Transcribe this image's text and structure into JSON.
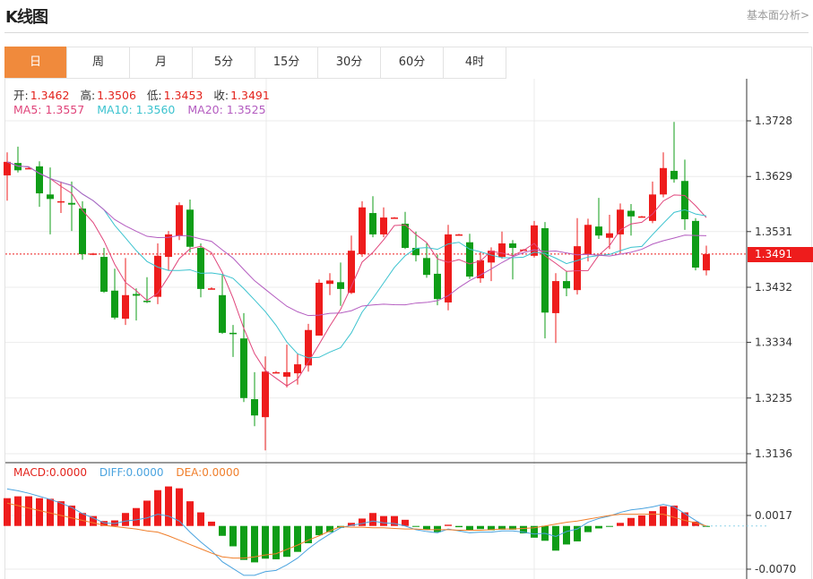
{
  "header": {
    "title": "K线图",
    "link": "基本面分析>"
  },
  "tabs": [
    {
      "label": "日",
      "active": true
    },
    {
      "label": "周"
    },
    {
      "label": "月"
    },
    {
      "label": "5分"
    },
    {
      "label": "15分"
    },
    {
      "label": "30分"
    },
    {
      "label": "60分"
    },
    {
      "label": "4时"
    }
  ],
  "info": {
    "open_label": "开:",
    "open": "1.3462",
    "high_label": "高:",
    "high": "1.3506",
    "low_label": "低:",
    "low": "1.3453",
    "close_label": "收:",
    "close": "1.3491",
    "ma5": "MA5: 1.3557",
    "ma10": "MA10: 1.3560",
    "ma20": "MA20: 1.3525"
  },
  "macd_info": {
    "macd": "MACD:0.0000",
    "diff": "DIFF:0.0000",
    "dea": "DEA:0.0000"
  },
  "colors": {
    "up": "#ee1c1c",
    "down": "#0f9d17",
    "ma5": "#e0457b",
    "ma10": "#3cc3cf",
    "ma20": "#b45cc0",
    "diff": "#4aa3df",
    "dea": "#f07e2a",
    "accent": "#f08a3c"
  },
  "chart_data": [
    {
      "type": "candlestick",
      "ylim": [
        1.3136,
        1.3728
      ],
      "yticks": [
        "1.3728",
        "1.3629",
        "1.3531",
        "1.3432",
        "1.3334",
        "1.3235",
        "1.3136"
      ],
      "last_price": "1.3491",
      "ohlc": [
        [
          1.3631,
          1.3672,
          1.3586,
          1.3655
        ],
        [
          1.3653,
          1.3682,
          1.3636,
          1.364
        ],
        [
          1.3643,
          1.3646,
          1.3642,
          1.3644
        ],
        [
          1.3647,
          1.3656,
          1.3575,
          1.3599
        ],
        [
          1.3597,
          1.3645,
          1.3526,
          1.3589
        ],
        [
          1.3583,
          1.362,
          1.3564,
          1.3585
        ],
        [
          1.3582,
          1.362,
          1.3532,
          1.3579
        ],
        [
          1.3572,
          1.3585,
          1.3481,
          1.3491
        ],
        [
          1.349,
          1.3493,
          1.3489,
          1.3492
        ],
        [
          1.3486,
          1.3502,
          1.3422,
          1.3424
        ],
        [
          1.3426,
          1.3465,
          1.3375,
          1.3378
        ],
        [
          1.3376,
          1.3484,
          1.3365,
          1.3418
        ],
        [
          1.342,
          1.343,
          1.3373,
          1.3417
        ],
        [
          1.3408,
          1.345,
          1.3404,
          1.3406
        ],
        [
          1.3415,
          1.351,
          1.3402,
          1.3488
        ],
        [
          1.3486,
          1.3532,
          1.3462,
          1.3526
        ],
        [
          1.3523,
          1.3583,
          1.3516,
          1.3578
        ],
        [
          1.357,
          1.3588,
          1.3494,
          1.3504
        ],
        [
          1.3502,
          1.351,
          1.3414,
          1.3429
        ],
        [
          1.3429,
          1.3432,
          1.3428,
          1.343
        ],
        [
          1.3418,
          1.3454,
          1.3349,
          1.3351
        ],
        [
          1.3351,
          1.3365,
          1.3308,
          1.3349
        ],
        [
          1.3341,
          1.3386,
          1.3228,
          1.3235
        ],
        [
          1.3233,
          1.3281,
          1.3185,
          1.3204
        ],
        [
          1.3201,
          1.3309,
          1.3142,
          1.3282
        ],
        [
          1.328,
          1.3283,
          1.3279,
          1.3281
        ],
        [
          1.3273,
          1.333,
          1.3254,
          1.3281
        ],
        [
          1.3279,
          1.3314,
          1.3259,
          1.3295
        ],
        [
          1.3293,
          1.3367,
          1.3282,
          1.3356
        ],
        [
          1.3346,
          1.3446,
          1.3346,
          1.344
        ],
        [
          1.3438,
          1.3457,
          1.3418,
          1.3444
        ],
        [
          1.3441,
          1.3476,
          1.3399,
          1.3429
        ],
        [
          1.3422,
          1.3524,
          1.342,
          1.3497
        ],
        [
          1.3491,
          1.3585,
          1.3486,
          1.3574
        ],
        [
          1.3564,
          1.3594,
          1.3521,
          1.3526
        ],
        [
          1.3526,
          1.3574,
          1.3521,
          1.3556
        ],
        [
          1.3555,
          1.3557,
          1.3554,
          1.3556
        ],
        [
          1.3545,
          1.3566,
          1.35,
          1.3502
        ],
        [
          1.3502,
          1.3531,
          1.3478,
          1.3489
        ],
        [
          1.3484,
          1.351,
          1.3449,
          1.3454
        ],
        [
          1.3456,
          1.349,
          1.34,
          1.3411
        ],
        [
          1.3405,
          1.3543,
          1.3391,
          1.3526
        ],
        [
          1.3525,
          1.3527,
          1.3524,
          1.3526
        ],
        [
          1.3512,
          1.3527,
          1.3447,
          1.3451
        ],
        [
          1.3448,
          1.3495,
          1.344,
          1.348
        ],
        [
          1.3476,
          1.3503,
          1.3443,
          1.3497
        ],
        [
          1.3486,
          1.3531,
          1.3483,
          1.351
        ],
        [
          1.351,
          1.3516,
          1.3446,
          1.3502
        ],
        [
          1.3498,
          1.35,
          1.3497,
          1.3499
        ],
        [
          1.3488,
          1.355,
          1.3485,
          1.3542
        ],
        [
          1.3537,
          1.3548,
          1.3341,
          1.3387
        ],
        [
          1.3386,
          1.3457,
          1.3333,
          1.3443
        ],
        [
          1.3443,
          1.3461,
          1.3416,
          1.343
        ],
        [
          1.3427,
          1.3555,
          1.3419,
          1.3505
        ],
        [
          1.3491,
          1.3554,
          1.3478,
          1.3543
        ],
        [
          1.354,
          1.3591,
          1.3518,
          1.3524
        ],
        [
          1.352,
          1.3561,
          1.35,
          1.3528
        ],
        [
          1.3526,
          1.3581,
          1.3492,
          1.357
        ],
        [
          1.3568,
          1.358,
          1.3524,
          1.3558
        ],
        [
          1.3557,
          1.3559,
          1.3556,
          1.3558
        ],
        [
          1.355,
          1.362,
          1.3546,
          1.3597
        ],
        [
          1.3597,
          1.3672,
          1.3592,
          1.3644
        ],
        [
          1.3639,
          1.3726,
          1.3618,
          1.3624
        ],
        [
          1.3621,
          1.3659,
          1.3534,
          1.3553
        ],
        [
          1.355,
          1.3555,
          1.3462,
          1.3467
        ],
        [
          1.3462,
          1.3506,
          1.3453,
          1.3491
        ]
      ],
      "ma_series": [
        "MA5",
        "MA10",
        "MA20"
      ]
    },
    {
      "type": "bar",
      "ylim": [
        -0.0077,
        0.0081
      ],
      "yticks": [
        "0.0017",
        "-0.0070"
      ],
      "macd": [
        0.0045,
        0.0048,
        0.0048,
        0.0045,
        0.0044,
        0.004,
        0.0033,
        0.0021,
        0.0016,
        0.0008,
        0.0009,
        0.0021,
        0.0029,
        0.0041,
        0.0058,
        0.0064,
        0.0061,
        0.004,
        0.0022,
        0.0007,
        -0.0016,
        -0.0033,
        -0.0055,
        -0.0059,
        -0.0053,
        -0.0054,
        -0.005,
        -0.0042,
        -0.0028,
        -0.0015,
        -0.001,
        -0.0003,
        0.0005,
        0.0012,
        0.0021,
        0.0016,
        0.0016,
        0.001,
        -0.0001,
        -0.0006,
        -0.001,
        0.0002,
        -0.0002,
        -0.0007,
        -0.0005,
        -0.0007,
        -0.0006,
        -0.0006,
        -0.0012,
        -0.0019,
        -0.0024,
        -0.004,
        -0.003,
        -0.0025,
        -0.001,
        -0.0004,
        -0.0001,
        0.0005,
        0.0013,
        0.0017,
        0.0024,
        0.0032,
        0.0033,
        0.0022,
        0.0007,
        -0.0001
      ],
      "diff": [
        0.006,
        0.0057,
        0.0053,
        0.0048,
        0.0043,
        0.0037,
        0.003,
        0.002,
        0.0013,
        0.0005,
        0.0004,
        0.0008,
        0.001,
        0.0013,
        0.0019,
        0.0016,
        0.0008,
        -0.001,
        -0.0026,
        -0.004,
        -0.0058,
        -0.0069,
        -0.008,
        -0.008,
        -0.0074,
        -0.0072,
        -0.0063,
        -0.0052,
        -0.0037,
        -0.0024,
        -0.0013,
        -0.0003,
        0.0001,
        0.0004,
        0.0008,
        0.0005,
        0.0004,
        0.0,
        -0.0006,
        -0.0009,
        -0.0011,
        -0.0005,
        -0.0008,
        -0.0011,
        -0.001,
        -0.001,
        -0.0008,
        -0.0008,
        -0.001,
        -0.0013,
        -0.0012,
        -0.0017,
        -0.0009,
        -0.0005,
        0.0006,
        0.0012,
        0.0016,
        0.0022,
        0.0026,
        0.0028,
        0.0031,
        0.0035,
        0.0031,
        0.002,
        0.0009,
        -0.0001
      ],
      "dea": [
        0.0037,
        0.0033,
        0.0029,
        0.0025,
        0.0021,
        0.0017,
        0.0013,
        0.0009,
        0.0005,
        0.0001,
        -0.0001,
        -0.0003,
        -0.0005,
        -0.0008,
        -0.001,
        -0.0016,
        -0.0023,
        -0.003,
        -0.0037,
        -0.0044,
        -0.005,
        -0.0052,
        -0.0052,
        -0.005,
        -0.0047,
        -0.0045,
        -0.0038,
        -0.0031,
        -0.0023,
        -0.0016,
        -0.0008,
        -0.0001,
        -0.0002,
        -0.0002,
        -0.0003,
        -0.0003,
        -0.0004,
        -0.0005,
        -0.0005,
        -0.0006,
        -0.0006,
        -0.0006,
        -0.0007,
        -0.0007,
        -0.0007,
        -0.0006,
        -0.0005,
        -0.0005,
        -0.0004,
        -0.0003,
        0.0,
        0.0003,
        0.0006,
        0.0008,
        0.0011,
        0.0014,
        0.0017,
        0.0019,
        0.0019,
        0.0019,
        0.0019,
        0.0019,
        0.0014,
        0.0009,
        0.0005,
        0.0
      ]
    }
  ]
}
